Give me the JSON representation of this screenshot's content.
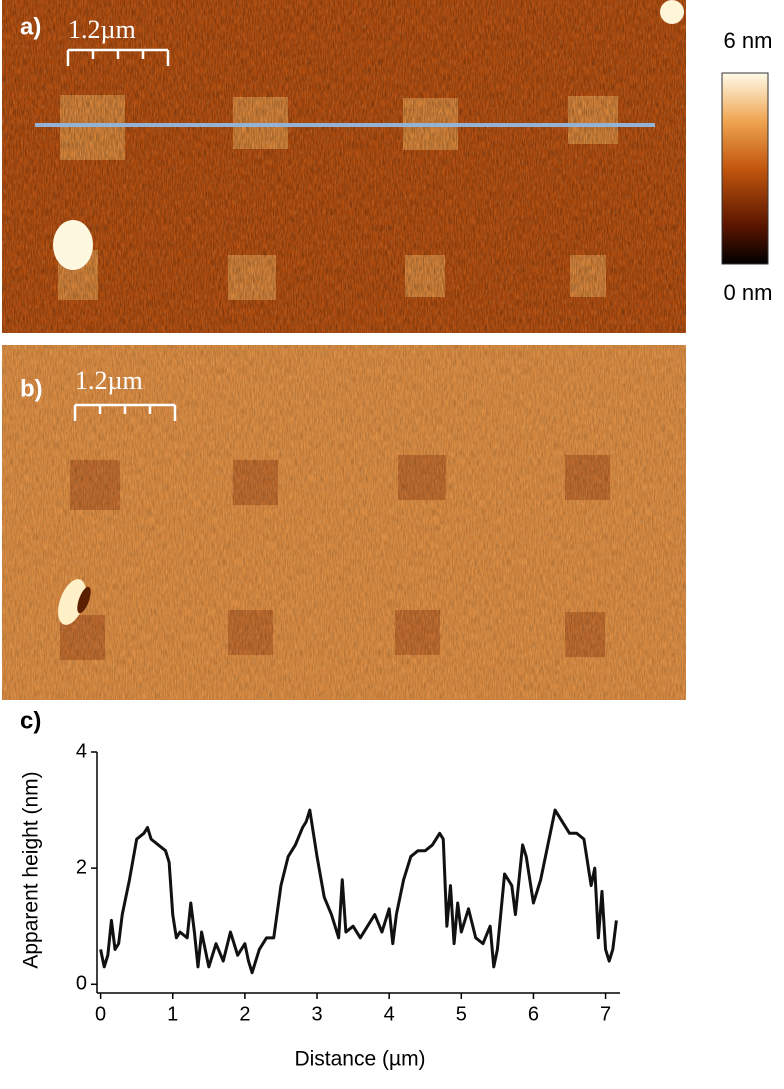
{
  "panels": {
    "a": {
      "label": "a)",
      "scale_bar": "1.2µm",
      "colorbar_max": "6 nm",
      "colorbar_min": "0 nm"
    },
    "b": {
      "label": "b)",
      "scale_bar": "1.2µm"
    },
    "c": {
      "label": "c)"
    }
  },
  "chart_data": {
    "type": "line",
    "x_label": "Distance (µm)",
    "y_label": "Apparent height (nm)",
    "x": [
      0,
      0.05,
      0.1,
      0.15,
      0.2,
      0.25,
      0.3,
      0.4,
      0.5,
      0.6,
      0.65,
      0.7,
      0.8,
      0.9,
      0.95,
      1.0,
      1.05,
      1.1,
      1.2,
      1.25,
      1.3,
      1.35,
      1.4,
      1.5,
      1.6,
      1.7,
      1.8,
      1.9,
      2.0,
      2.05,
      2.1,
      2.2,
      2.3,
      2.4,
      2.5,
      2.6,
      2.7,
      2.8,
      2.85,
      2.9,
      2.95,
      3.0,
      3.1,
      3.2,
      3.3,
      3.35,
      3.4,
      3.5,
      3.6,
      3.7,
      3.8,
      3.9,
      4.0,
      4.05,
      4.1,
      4.2,
      4.3,
      4.4,
      4.5,
      4.6,
      4.7,
      4.75,
      4.8,
      4.85,
      4.9,
      4.95,
      5.0,
      5.1,
      5.2,
      5.3,
      5.4,
      5.45,
      5.5,
      5.6,
      5.7,
      5.75,
      5.8,
      5.85,
      5.9,
      6.0,
      6.1,
      6.2,
      6.3,
      6.4,
      6.5,
      6.6,
      6.7,
      6.8,
      6.85,
      6.9,
      6.95,
      7.0,
      7.05,
      7.1,
      7.15
    ],
    "values": [
      0.6,
      0.3,
      0.5,
      1.1,
      0.6,
      0.7,
      1.2,
      1.8,
      2.5,
      2.6,
      2.7,
      2.5,
      2.4,
      2.3,
      2.1,
      1.2,
      0.8,
      0.9,
      0.8,
      1.4,
      0.9,
      0.3,
      0.9,
      0.3,
      0.7,
      0.4,
      0.9,
      0.5,
      0.7,
      0.4,
      0.2,
      0.6,
      0.8,
      0.8,
      1.7,
      2.2,
      2.4,
      2.7,
      2.8,
      3.0,
      2.6,
      2.2,
      1.5,
      1.2,
      0.8,
      1.8,
      0.9,
      1.0,
      0.8,
      1.0,
      1.2,
      0.9,
      1.3,
      0.7,
      1.2,
      1.8,
      2.2,
      2.3,
      2.3,
      2.4,
      2.6,
      2.5,
      1.0,
      1.7,
      0.7,
      1.4,
      0.9,
      1.3,
      0.8,
      0.7,
      1.0,
      0.3,
      0.6,
      1.9,
      1.7,
      1.2,
      1.8,
      2.4,
      2.2,
      1.4,
      1.8,
      2.4,
      3.0,
      2.8,
      2.6,
      2.6,
      2.5,
      1.7,
      2.0,
      0.8,
      1.6,
      0.6,
      0.4,
      0.6,
      1.1
    ],
    "color": "#111111",
    "xlim": [
      -0.05,
      7.2
    ],
    "ylim": [
      -0.15,
      4
    ],
    "xticks": [
      0,
      1,
      2,
      3,
      4,
      5,
      6,
      7
    ],
    "yticks": [
      0,
      2,
      4
    ]
  }
}
